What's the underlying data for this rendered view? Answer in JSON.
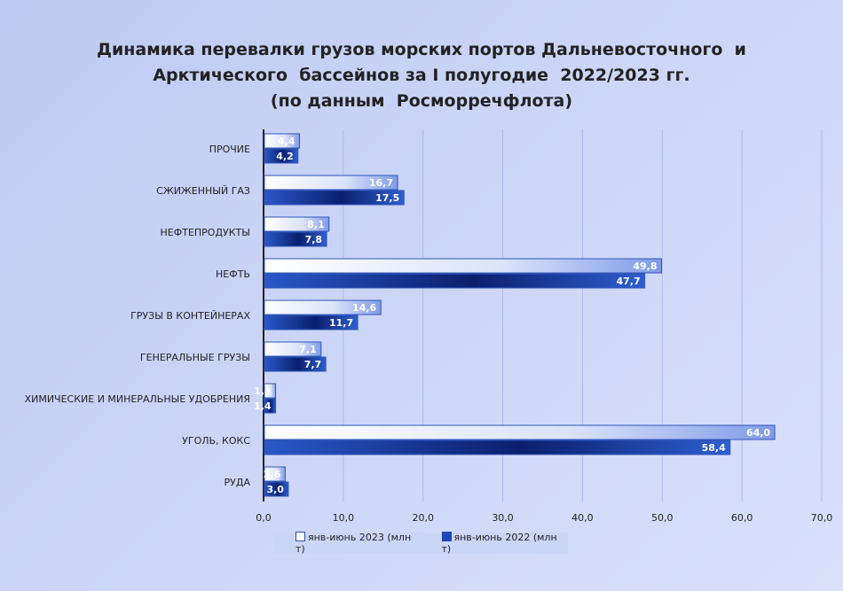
{
  "chart_data": {
    "type": "bar",
    "orientation": "horizontal",
    "title": [
      "Динамика перевалки грузов морских портов Дальневосточного  и",
      "Арктического  бассейнов за I полугодие  2022/2023 гг.",
      "(по данным  Росморречфлота)"
    ],
    "categories": [
      "ПРОЧИЕ",
      "СЖИЖЕННЫЙ   ГАЗ",
      "НЕФТЕПРОДУКТЫ",
      "НЕФТЬ",
      "ГРУЗЫ В КОНТЕЙНЕРАХ",
      "ГЕНЕРАЛЬНЫЕ  ГРУЗЫ",
      "ХИМИЧЕСКИЕ  И МИНЕРАЛЬНЫЕ  УДОБРЕНИЯ",
      "УГОЛЬ, КОКС",
      "РУДА"
    ],
    "series": [
      {
        "name": "янв-июнь 2023 (млн т)",
        "color": "#e6ecfc",
        "values": [
          4.4,
          16.7,
          8.1,
          49.8,
          14.6,
          7.1,
          1.4,
          64.0,
          2.6
        ],
        "labels": [
          "4,4",
          "16,7",
          "8,1",
          "49,8",
          "14,6",
          "7,1",
          "1,4",
          "64,0",
          "2,6"
        ]
      },
      {
        "name": "янв-июнь 2022 (млн т)",
        "color": "#1d47b3",
        "values": [
          4.2,
          17.5,
          7.8,
          47.7,
          11.7,
          7.7,
          1.4,
          58.4,
          3.0
        ],
        "labels": [
          "4,2",
          "17,5",
          "7,8",
          "47,7",
          "11,7",
          "7,7",
          "1,4",
          "58,4",
          "3,0"
        ]
      }
    ],
    "xlim": [
      0,
      70
    ],
    "xticks": [
      "0,0",
      "10,0",
      "20,0",
      "30,0",
      "40,0",
      "50,0",
      "60,0",
      "70,0"
    ],
    "grid": true,
    "legend": "bottom"
  }
}
